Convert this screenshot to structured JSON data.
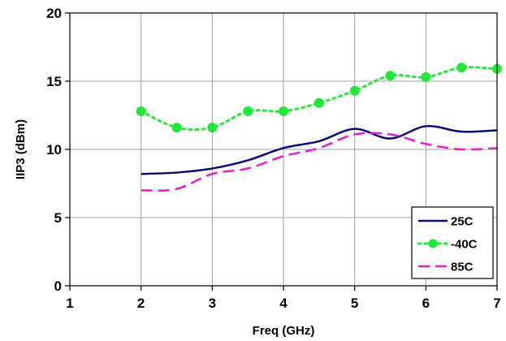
{
  "chart_data": {
    "type": "line",
    "title": "",
    "xlabel": "Freq (GHz)",
    "ylabel": "IIP3 (dBm)",
    "xlim": [
      1,
      7
    ],
    "ylim": [
      0,
      20
    ],
    "x_ticks": [
      "1",
      "2",
      "3",
      "4",
      "5",
      "6",
      "7"
    ],
    "y_ticks": [
      "0",
      "5",
      "10",
      "15",
      "20"
    ],
    "grid": true,
    "legend_position": "bottom-right",
    "series": [
      {
        "name": "25C",
        "color": "#0a0a7a",
        "style": "solid",
        "x": [
          2,
          2.5,
          3,
          3.5,
          4,
          4.5,
          5,
          5.5,
          6,
          6.5,
          7
        ],
        "y": [
          8.2,
          8.3,
          8.6,
          9.2,
          10.1,
          10.6,
          11.5,
          10.8,
          11.7,
          11.3,
          11.4
        ]
      },
      {
        "name": "-40C",
        "color": "#22e83a",
        "style": "dotted-markers",
        "x": [
          2,
          2.5,
          3,
          3.5,
          4,
          4.5,
          5,
          5.5,
          6,
          6.5,
          7
        ],
        "y": [
          12.8,
          11.6,
          11.6,
          12.8,
          12.8,
          13.4,
          14.3,
          15.4,
          15.3,
          16.0,
          15.9
        ]
      },
      {
        "name": "85C",
        "color": "#e020c8",
        "style": "dashed",
        "x": [
          2,
          2.5,
          3,
          3.5,
          4,
          4.5,
          5,
          5.5,
          6,
          6.5,
          7
        ],
        "y": [
          7.0,
          7.1,
          8.2,
          8.6,
          9.5,
          10.1,
          11.1,
          11.1,
          10.4,
          10.0,
          10.1
        ]
      }
    ]
  }
}
